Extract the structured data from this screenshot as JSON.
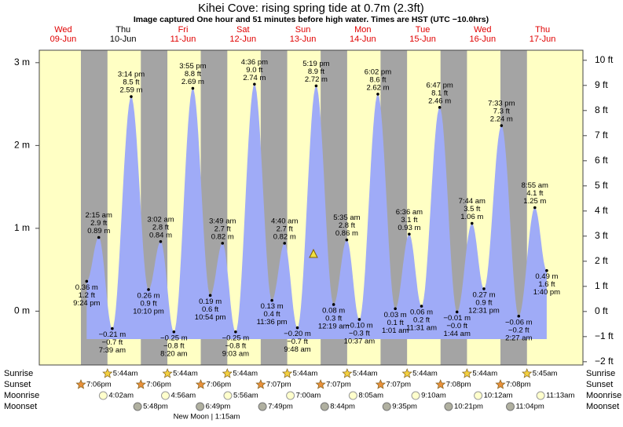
{
  "chart_data": {
    "type": "tide",
    "title": "Kihei Cove: rising  spring tide at 0.7m (2.3ft)",
    "subtitle": "Image captured One hour and 51 minutes before high water. Times are HST (UTC −10.0hrs)",
    "days": [
      {
        "weekday": "Wed",
        "date": "09-Jun",
        "color": "#e00000"
      },
      {
        "weekday": "Thu",
        "date": "10-Jun",
        "color": "#000000"
      },
      {
        "weekday": "Fri",
        "date": "11-Jun",
        "color": "#e00000"
      },
      {
        "weekday": "Sat",
        "date": "12-Jun",
        "color": "#e00000"
      },
      {
        "weekday": "Sun",
        "date": "13-Jun",
        "color": "#e00000"
      },
      {
        "weekday": "Mon",
        "date": "14-Jun",
        "color": "#e00000"
      },
      {
        "weekday": "Tue",
        "date": "15-Jun",
        "color": "#e00000"
      },
      {
        "weekday": "Wed",
        "date": "16-Jun",
        "color": "#e00000"
      },
      {
        "weekday": "Thu",
        "date": "17-Jun",
        "color": "#e00000"
      }
    ],
    "ylim": [
      -0.65,
      3.15
    ],
    "yticks": [
      {
        "value": 0,
        "label": "0 m"
      },
      {
        "value": 1,
        "label": "1 m"
      },
      {
        "value": 2,
        "label": "2 m"
      },
      {
        "value": 3,
        "label": "3 m"
      }
    ],
    "y2lim": [
      -2.13,
      10.4
    ],
    "y2ticks": [
      {
        "value": -2,
        "label": "−2 ft"
      },
      {
        "value": -1,
        "label": "−1 ft"
      },
      {
        "value": 0,
        "label": "0 ft"
      },
      {
        "value": 1,
        "label": "1 ft"
      },
      {
        "value": 2,
        "label": "2 ft"
      },
      {
        "value": 3,
        "label": "3 ft"
      },
      {
        "value": 4,
        "label": "4 ft"
      },
      {
        "value": 5,
        "label": "5 ft"
      },
      {
        "value": 6,
        "label": "6 ft"
      },
      {
        "value": 7,
        "label": "7 ft"
      },
      {
        "value": 8,
        "label": "8 ft"
      },
      {
        "value": 9,
        "label": "9 ft"
      },
      {
        "value": 10,
        "label": "10 ft"
      }
    ],
    "color": "#9fabf7",
    "tides": [
      [
        {
          "time": "9:24 pm",
          "m": 0.36,
          "m_label": "0.36 m",
          "ft": 1.2,
          "ft_label": "1.2 ft"
        }
      ],
      [
        {
          "time": "2:15 am",
          "m": 0.89,
          "m_label": "0.89 m",
          "ft": 2.9,
          "ft_label": "2.9 ft"
        },
        {
          "time": "7:39 am",
          "m": -0.21,
          "m_label": "−0.21 m",
          "ft": -0.7,
          "ft_label": "−0.7 ft"
        },
        {
          "time": "3:14 pm",
          "m": 2.59,
          "m_label": "2.59 m",
          "ft": 8.5,
          "ft_label": "8.5 ft"
        },
        {
          "time": "10:10 pm",
          "m": 0.26,
          "m_label": "0.26 m",
          "ft": 0.9,
          "ft_label": "0.9 ft"
        }
      ],
      [
        {
          "time": "3:02 am",
          "m": 0.84,
          "m_label": "0.84 m",
          "ft": 2.8,
          "ft_label": "2.8 ft"
        },
        {
          "time": "8:20 am",
          "m": -0.25,
          "m_label": "−0.25 m",
          "ft": -0.8,
          "ft_label": "−0.8 ft"
        },
        {
          "time": "3:55 pm",
          "m": 2.69,
          "m_label": "2.69 m",
          "ft": 8.8,
          "ft_label": "8.8 ft"
        },
        {
          "time": "10:54 pm",
          "m": 0.19,
          "m_label": "0.19 m",
          "ft": 0.6,
          "ft_label": "0.6 ft"
        }
      ],
      [
        {
          "time": "3:49 am",
          "m": 0.82,
          "m_label": "0.82 m",
          "ft": 2.7,
          "ft_label": "2.7 ft"
        },
        {
          "time": "9:03 am",
          "m": -0.25,
          "m_label": "−0.25 m",
          "ft": -0.8,
          "ft_label": "−0.8 ft"
        },
        {
          "time": "4:36 pm",
          "m": 2.74,
          "m_label": "2.74 m",
          "ft": 9.0,
          "ft_label": "9.0 ft"
        },
        {
          "time": "11:36 pm",
          "m": 0.13,
          "m_label": "0.13 m",
          "ft": 0.4,
          "ft_label": "0.4 ft"
        }
      ],
      [
        {
          "time": "4:40 am",
          "m": 0.82,
          "m_label": "0.82 m",
          "ft": 2.7,
          "ft_label": "2.7 ft"
        },
        {
          "time": "9:48 am",
          "m": -0.2,
          "m_label": "−0.20 m",
          "ft": -0.7,
          "ft_label": "−0.7 ft"
        },
        {
          "time": "5:19 pm",
          "m": 2.72,
          "m_label": "2.72 m",
          "ft": 8.9,
          "ft_label": "8.9 ft"
        }
      ],
      [
        {
          "time": "12:19 am",
          "m": 0.08,
          "m_label": "0.08 m",
          "ft": 0.3,
          "ft_label": "0.3 ft"
        },
        {
          "time": "5:35 am",
          "m": 0.86,
          "m_label": "0.86 m",
          "ft": 2.8,
          "ft_label": "2.8 ft"
        },
        {
          "time": "10:37 am",
          "m": -0.1,
          "m_label": "−0.10 m",
          "ft": -0.3,
          "ft_label": "−0.3 ft"
        },
        {
          "time": "6:02 pm",
          "m": 2.62,
          "m_label": "2.62 m",
          "ft": 8.6,
          "ft_label": "8.6 ft"
        }
      ],
      [
        {
          "time": "1:01 am",
          "m": 0.03,
          "m_label": "0.03 m",
          "ft": 0.1,
          "ft_label": "0.1 ft"
        },
        {
          "time": "6:36 am",
          "m": 0.93,
          "m_label": "0.93 m",
          "ft": 3.1,
          "ft_label": "3.1 ft"
        },
        {
          "time": "11:31 am",
          "m": 0.06,
          "m_label": "0.06 m",
          "ft": 0.2,
          "ft_label": "0.2 ft"
        },
        {
          "time": "6:47 pm",
          "m": 2.46,
          "m_label": "2.46 m",
          "ft": 8.1,
          "ft_label": "8.1 ft"
        }
      ],
      [
        {
          "time": "1:44 am",
          "m": -0.01,
          "m_label": "−0.01 m",
          "ft": -0.0,
          "ft_label": "−0.0 ft"
        },
        {
          "time": "7:44 am",
          "m": 1.06,
          "m_label": "1.06 m",
          "ft": 3.5,
          "ft_label": "3.5 ft"
        },
        {
          "time": "12:31 pm",
          "m": 0.27,
          "m_label": "0.27 m",
          "ft": 0.9,
          "ft_label": "0.9 ft"
        },
        {
          "time": "7:33 pm",
          "m": 2.24,
          "m_label": "2.24 m",
          "ft": 7.3,
          "ft_label": "7.3 ft"
        }
      ],
      [
        {
          "time": "2:27 am",
          "m": -0.06,
          "m_label": "−0.06 m",
          "ft": -0.2,
          "ft_label": "−0.2 ft"
        },
        {
          "time": "8:55 am",
          "m": 1.25,
          "m_label": "1.25 m",
          "ft": 4.1,
          "ft_label": "4.1 ft"
        },
        {
          "time": "1:40 pm",
          "m": 0.49,
          "m_label": "0.49 m",
          "ft": 1.6,
          "ft_label": "1.6 ft"
        }
      ]
    ],
    "rows": [
      {
        "name": "Sunrise",
        "icon": "sunrise",
        "times": [
          null,
          "5:44am",
          "5:44am",
          "5:44am",
          "5:44am",
          "5:44am",
          "5:44am",
          "5:44am",
          "5:45am"
        ]
      },
      {
        "name": "Sunset",
        "icon": "sunset",
        "times": [
          "7:06pm",
          "7:06pm",
          "7:06pm",
          "7:07pm",
          "7:07pm",
          "7:07pm",
          "7:08pm",
          "7:08pm",
          null
        ]
      },
      {
        "name": "Moonrise",
        "icon": "moonrise",
        "times": [
          null,
          "4:02am",
          "4:56am",
          "5:56am",
          "7:00am",
          "8:05am",
          "9:10am",
          "10:12am",
          "11:13am"
        ]
      },
      {
        "name": "Moonset",
        "icon": "moonset",
        "times": [
          null,
          "5:48pm",
          "6:49pm",
          "7:49pm",
          "8:44pm",
          "9:35pm",
          "10:21pm",
          "11:04pm",
          null
        ]
      }
    ],
    "moon_phase": "New Moon | 1:15am"
  }
}
